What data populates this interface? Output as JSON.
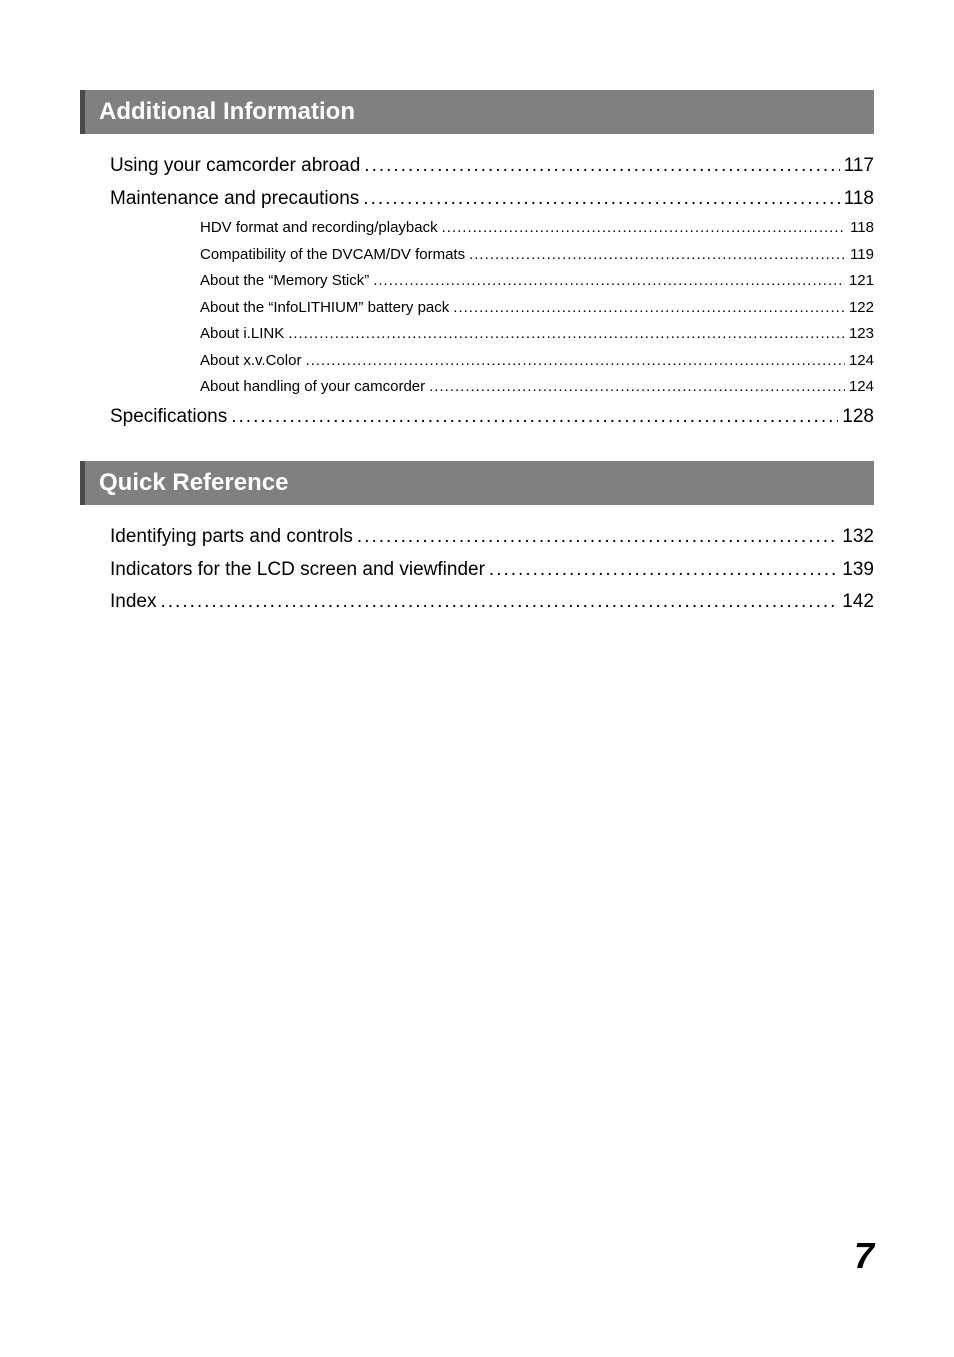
{
  "sections": [
    {
      "title": "Additional Information",
      "entries": [
        {
          "type": "main",
          "label": "Using your camcorder abroad",
          "page": "117"
        },
        {
          "type": "main",
          "label": "Maintenance and precautions",
          "page": "118"
        },
        {
          "type": "sub",
          "label": "HDV format and recording/playback",
          "page": "118"
        },
        {
          "type": "sub",
          "label": "Compatibility of the DVCAM/DV formats",
          "page": "119"
        },
        {
          "type": "sub",
          "label": "About the “Memory Stick”",
          "page": "121"
        },
        {
          "type": "sub",
          "label": "About the “InfoLITHIUM” battery pack",
          "page": "122"
        },
        {
          "type": "sub",
          "label": "About i.LINK",
          "page": "123"
        },
        {
          "type": "sub",
          "label": "About x.v.Color",
          "page": "124"
        },
        {
          "type": "sub",
          "label": "About handling of your camcorder",
          "page": "124"
        },
        {
          "type": "main",
          "label": "Specifications",
          "page": "128"
        }
      ]
    },
    {
      "title": "Quick Reference",
      "entries": [
        {
          "type": "main",
          "label": "Identifying parts and controls",
          "page": "132"
        },
        {
          "type": "main",
          "label": "Indicators for the LCD screen and viewfinder",
          "page": "139"
        },
        {
          "type": "main",
          "label": "Index",
          "page": "142"
        }
      ]
    }
  ],
  "page_number": "7"
}
